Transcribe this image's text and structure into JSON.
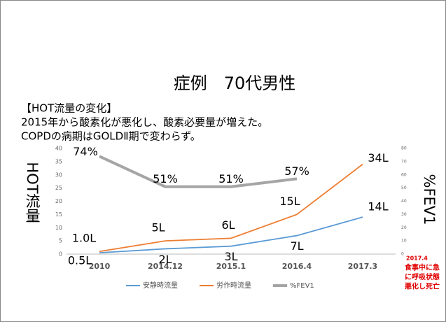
{
  "chart_data": {
    "type": "line",
    "title": "症例　70代男性",
    "text_lines": [
      "【HOT流量の変化】",
      "2015年から酸素化が悪化し、酸素必要量が増えた。",
      "COPDの病期はGOLDⅡ期で変わらず。"
    ],
    "y_label": "HOT流量",
    "y2_label": "%FEV1",
    "categories": [
      "2010",
      "2014.12",
      "2015.1",
      "2016.4",
      "2017.3"
    ],
    "ylim": [
      0,
      40
    ],
    "yticks": [
      0,
      5,
      10,
      15,
      20,
      25,
      30,
      35,
      40
    ],
    "y2lim": [
      0,
      80
    ],
    "y2ticks": [
      0,
      10,
      20,
      30,
      40,
      50,
      60,
      70,
      80
    ],
    "series": [
      {
        "name": "安静時流量",
        "color": "#5b9bd5",
        "values": [
          0.5,
          2,
          3,
          7,
          14
        ],
        "value_labels": [
          "0.5L",
          "2L",
          "3L",
          "7L",
          "14L"
        ]
      },
      {
        "name": "労作時流量",
        "color": "#ed7d31",
        "values": [
          1.0,
          5,
          6,
          15,
          34
        ],
        "value_labels": [
          "1.0L",
          "5L",
          "6L",
          "15L",
          "34L"
        ]
      },
      {
        "name": "%FEV1",
        "color": "#a5a5a5",
        "axis": "y2",
        "values": [
          74,
          51,
          51,
          57,
          null
        ],
        "value_labels": [
          "74%",
          "51%",
          "51%",
          "57%",
          null
        ]
      }
    ],
    "annotation": [
      "2017.4",
      "食事中に急",
      "に呼吸状態",
      "悪化し死亡"
    ],
    "annotation_color": "#e00000"
  }
}
